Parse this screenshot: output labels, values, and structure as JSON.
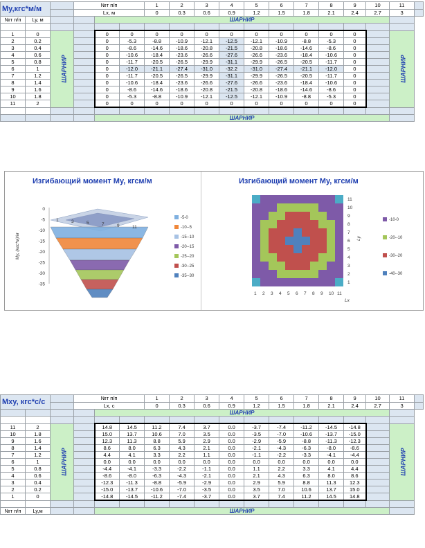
{
  "t1": {
    "title": "My,кгс*м/м",
    "np_label": "№т п/п",
    "lx_label": "Lx, м",
    "ly_label": "Ly, м",
    "hinge": "ШАРНИР",
    "cols": [
      "1",
      "2",
      "3",
      "4",
      "5",
      "6",
      "7",
      "8",
      "9",
      "10",
      "11"
    ],
    "lx": [
      "0",
      "0.3",
      "0.6",
      "0.9",
      "1.2",
      "1.5",
      "1.8",
      "2.1",
      "2.4",
      "2.7",
      "3"
    ],
    "rows": [
      {
        "n": "1",
        "ly": "0",
        "v": [
          "0",
          "0",
          "0",
          "0",
          "0",
          "0",
          "0",
          "0",
          "0",
          "0",
          "0"
        ]
      },
      {
        "n": "2",
        "ly": "0.2",
        "v": [
          "0",
          "-5.3",
          "-8.8",
          "-10.9",
          "-12.1",
          "-12.5",
          "-12.1",
          "-10.9",
          "-8.8",
          "-5.3",
          "0"
        ]
      },
      {
        "n": "3",
        "ly": "0.4",
        "v": [
          "0",
          "-8.6",
          "-14.6",
          "-18.6",
          "-20.8",
          "-21.5",
          "-20.8",
          "-18.6",
          "-14.6",
          "-8.6",
          "0"
        ]
      },
      {
        "n": "4",
        "ly": "0.6",
        "v": [
          "0",
          "-10.6",
          "-18.4",
          "-23.6",
          "-26.6",
          "-27.6",
          "-26.6",
          "-23.6",
          "-18.4",
          "-10.6",
          "0"
        ]
      },
      {
        "n": "5",
        "ly": "0.8",
        "v": [
          "0",
          "-11.7",
          "-20.5",
          "-26.5",
          "-29.9",
          "-31.1",
          "-29.9",
          "-26.5",
          "-20.5",
          "-11.7",
          "0"
        ]
      },
      {
        "n": "6",
        "ly": "1",
        "v": [
          "0",
          "-12.0",
          "-21.1",
          "-27.4",
          "-31.0",
          "-32.2",
          "-31.0",
          "-27.4",
          "-21.1",
          "-12.0",
          "0"
        ]
      },
      {
        "n": "7",
        "ly": "1.2",
        "v": [
          "0",
          "-11.7",
          "-20.5",
          "-26.5",
          "-29.9",
          "-31.1",
          "-29.9",
          "-26.5",
          "-20.5",
          "-11.7",
          "0"
        ]
      },
      {
        "n": "8",
        "ly": "1.4",
        "v": [
          "0",
          "-10.6",
          "-18.4",
          "-23.6",
          "-26.6",
          "-27.6",
          "-26.6",
          "-23.6",
          "-18.4",
          "-10.6",
          "0"
        ]
      },
      {
        "n": "9",
        "ly": "1.6",
        "v": [
          "0",
          "-8.6",
          "-14.6",
          "-18.6",
          "-20.8",
          "-21.5",
          "-20.8",
          "-18.6",
          "-14.6",
          "-8.6",
          "0"
        ]
      },
      {
        "n": "10",
        "ly": "1.8",
        "v": [
          "0",
          "-5.3",
          "-8.8",
          "-10.9",
          "-12.1",
          "-12.5",
          "-12.1",
          "-10.9",
          "-8.8",
          "-5.3",
          "0"
        ]
      },
      {
        "n": "11",
        "ly": "2",
        "v": [
          "0",
          "0",
          "0",
          "0",
          "0",
          "0",
          "0",
          "0",
          "0",
          "0",
          "0"
        ]
      }
    ]
  },
  "t2": {
    "title": "Mxy, кгс*с/с",
    "np_label": "№т п/п",
    "lx_label": "Lx, с",
    "ly_label": "Ly,м",
    "hinge": "ШАРНИР",
    "cols": [
      "1",
      "2",
      "3",
      "4",
      "5",
      "6",
      "7",
      "8",
      "9",
      "10",
      "11"
    ],
    "lx": [
      "0",
      "0.3",
      "0.6",
      "0.9",
      "1.2",
      "1.5",
      "1.8",
      "2.1",
      "2.4",
      "2.7",
      "3"
    ],
    "rows": [
      {
        "n": "11",
        "ly": "2",
        "v": [
          "14.8",
          "14.5",
          "11.2",
          "7.4",
          "3.7",
          "0.0",
          "-3.7",
          "-7.4",
          "-11.2",
          "-14.5",
          "-14.8"
        ]
      },
      {
        "n": "10",
        "ly": "1.8",
        "v": [
          "15.0",
          "13.7",
          "10.6",
          "7.0",
          "3.5",
          "0.0",
          "-3.5",
          "-7.0",
          "-10.6",
          "-13.7",
          "-15.0"
        ]
      },
      {
        "n": "9",
        "ly": "1.6",
        "v": [
          "12.3",
          "11.3",
          "8.8",
          "5.9",
          "2.9",
          "0.0",
          "-2.9",
          "-5.9",
          "-8.8",
          "-11.3",
          "-12.3"
        ]
      },
      {
        "n": "8",
        "ly": "1.4",
        "v": [
          "8.6",
          "8.0",
          "6.3",
          "4.3",
          "2.1",
          "0.0",
          "-2.1",
          "-4.3",
          "-6.3",
          "-8.0",
          "-8.6"
        ]
      },
      {
        "n": "7",
        "ly": "1.2",
        "v": [
          "4.4",
          "4.1",
          "3.3",
          "2.2",
          "1.1",
          "0.0",
          "-1.1",
          "-2.2",
          "-3.3",
          "-4.1",
          "-4.4"
        ]
      },
      {
        "n": "6",
        "ly": "1",
        "v": [
          "0.0",
          "0.0",
          "0.0",
          "0.0",
          "0.0",
          "0.0",
          "0.0",
          "0.0",
          "0.0",
          "0.0",
          "0.0"
        ]
      },
      {
        "n": "5",
        "ly": "0.8",
        "v": [
          "-4.4",
          "-4.1",
          "-3.3",
          "-2.2",
          "-1.1",
          "0.0",
          "1.1",
          "2.2",
          "3.3",
          "4.1",
          "4.4"
        ]
      },
      {
        "n": "4",
        "ly": "0.6",
        "v": [
          "-8.6",
          "-8.0",
          "-6.3",
          "-4.3",
          "-2.1",
          "0.0",
          "2.1",
          "4.3",
          "6.3",
          "8.0",
          "8.6"
        ]
      },
      {
        "n": "3",
        "ly": "0.4",
        "v": [
          "-12.3",
          "-11.3",
          "-8.8",
          "-5.9",
          "-2.9",
          "0.0",
          "2.9",
          "5.9",
          "8.8",
          "11.3",
          "12.3"
        ]
      },
      {
        "n": "2",
        "ly": "0.2",
        "v": [
          "-15.0",
          "-13.7",
          "-10.6",
          "-7.0",
          "-3.5",
          "0.0",
          "3.5",
          "7.0",
          "10.6",
          "13.7",
          "15.0"
        ]
      },
      {
        "n": "1",
        "ly": "0",
        "v": [
          "-14.8",
          "-14.5",
          "-11.2",
          "-7.4",
          "-3.7",
          "0.0",
          "3.7",
          "7.4",
          "11.2",
          "14.5",
          "14.8"
        ]
      }
    ]
  },
  "chart_data": [
    {
      "type": "surface",
      "title": "Изгибающий момент My, кгсм/м",
      "ylabel": "My, (кгс*м)/м",
      "z_ticks": [
        "0",
        "-5",
        "-10",
        "-15",
        "-20",
        "-25",
        "-30",
        "-35"
      ],
      "x_ticks": [
        "1",
        "3",
        "5",
        "7",
        "9",
        "11"
      ],
      "legend": [
        "-5-0",
        "-10--5",
        "-15--10",
        "-20--15",
        "-25--20",
        "-30--25",
        "-35--30"
      ],
      "colors": [
        "#7fb0e0",
        "#f0873a",
        "#a7c2e4",
        "#7e5aa8",
        "#a4c65a",
        "#c0504d",
        "#4f81bd"
      ]
    },
    {
      "type": "heatmap",
      "title": "Изгибающий момент My, кгсм/м",
      "xlabel": "Lx",
      "ylabel": "Ly",
      "x_ticks": [
        "1",
        "2",
        "3",
        "4",
        "5",
        "6",
        "7",
        "8",
        "9",
        "10",
        "11"
      ],
      "y_ticks": [
        "1",
        "2",
        "3",
        "4",
        "5",
        "6",
        "7",
        "8",
        "9",
        "10",
        "11"
      ],
      "legend": [
        "-10-0",
        "-20--10",
        "-30--20",
        "-40--30"
      ],
      "colors": [
        "#7e5aa8",
        "#a4c65a",
        "#c0504d",
        "#4f81bd"
      ]
    }
  ]
}
